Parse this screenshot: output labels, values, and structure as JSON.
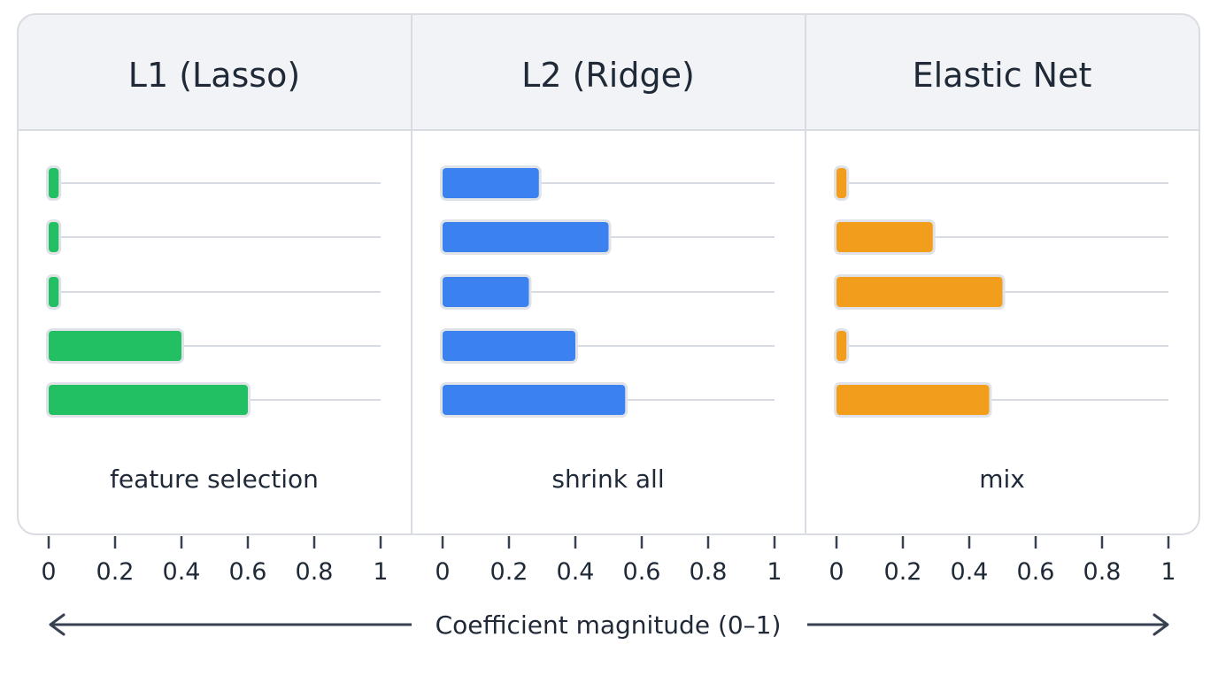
{
  "chart_data": [
    {
      "type": "bar",
      "orientation": "horizontal",
      "title": "L1 (Lasso)",
      "caption": "feature selection",
      "values": [
        0.03,
        0.03,
        0.03,
        0.4,
        0.6
      ],
      "color": "#22c063",
      "xlim": [
        0,
        1
      ],
      "xticks": [
        "0",
        "0.2",
        "0.4",
        "0.6",
        "0.8",
        "1"
      ]
    },
    {
      "type": "bar",
      "orientation": "horizontal",
      "title": "L2 (Ridge)",
      "caption": "shrink all",
      "values": [
        0.29,
        0.5,
        0.26,
        0.4,
        0.55
      ],
      "color": "#3b82f0",
      "xlim": [
        0,
        1
      ],
      "xticks": [
        "0",
        "0.2",
        "0.4",
        "0.6",
        "0.8",
        "1"
      ]
    },
    {
      "type": "bar",
      "orientation": "horizontal",
      "title": "Elastic Net",
      "caption": "mix",
      "values": [
        0.03,
        0.29,
        0.5,
        0.03,
        0.46
      ],
      "color": "#f29e1c",
      "xlim": [
        0,
        1
      ],
      "xticks": [
        "0",
        "0.2",
        "0.4",
        "0.6",
        "0.8",
        "1"
      ]
    }
  ],
  "xlabel": "Coefficient magnitude (0–1)",
  "colors": {
    "header_bg": "#f1f3f6",
    "border": "#d9dde3",
    "grid": "#d8dce2",
    "text": "#1f2937",
    "arrow": "#374151"
  }
}
